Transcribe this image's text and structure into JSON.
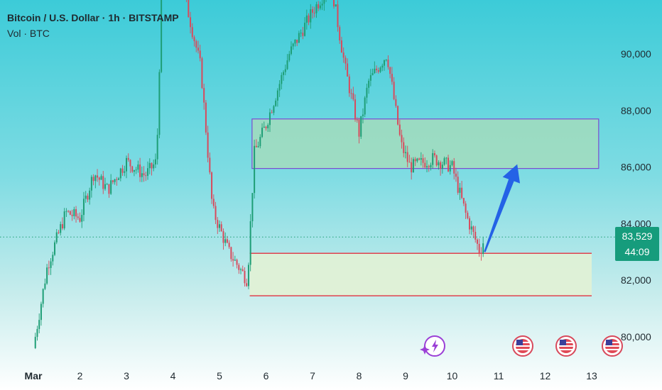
{
  "header": {
    "title": "Bitcoin / U.S. Dollar · 1h · BITSTAMP",
    "subtitle": "Vol · BTC"
  },
  "price_tag": {
    "price": "83,529",
    "countdown": "44:09",
    "color": "#169c7c"
  },
  "colors": {
    "up": "#1e9e76",
    "down": "#d84a5c",
    "resistance_fill": "#a9dcb8",
    "resistance_border": "#7c4bd0",
    "support_fill": "#e4f2d4",
    "support_border": "#e0434f",
    "arrow": "#2462e6"
  },
  "icons": [
    "sparkle-flash-icon",
    "us-flag-icon",
    "us-flag-icon",
    "us-flag-icon"
  ],
  "chart_data": {
    "type": "candlestick",
    "title": "Bitcoin / U.S. Dollar · 1h · BITSTAMP",
    "x_ticks": [
      "Mar",
      "2",
      "3",
      "4",
      "5",
      "6",
      "7",
      "8",
      "9",
      "10",
      "11",
      "12",
      "13"
    ],
    "y_ticks": [
      "80,000",
      "82,000",
      "84,000",
      "86,000",
      "88,000",
      "90,000"
    ],
    "ylim": [
      79200,
      92500
    ],
    "last_price": 83529,
    "price_path": [
      {
        "day": 0.0,
        "price": 79600
      },
      {
        "day": 0.3,
        "price": 82500
      },
      {
        "day": 0.7,
        "price": 84400
      },
      {
        "day": 1.0,
        "price": 84200
      },
      {
        "day": 1.3,
        "price": 85800
      },
      {
        "day": 1.6,
        "price": 85200
      },
      {
        "day": 2.0,
        "price": 86200
      },
      {
        "day": 2.4,
        "price": 85700
      },
      {
        "day": 2.65,
        "price": 86200
      },
      {
        "day": 2.75,
        "price": 92000
      },
      {
        "day": 3.2,
        "price": 92400
      },
      {
        "day": 3.6,
        "price": 89500
      },
      {
        "day": 3.85,
        "price": 84500
      },
      {
        "day": 4.2,
        "price": 83000
      },
      {
        "day": 4.6,
        "price": 82000
      },
      {
        "day": 4.75,
        "price": 86500
      },
      {
        "day": 5.0,
        "price": 87500
      },
      {
        "day": 5.5,
        "price": 90000
      },
      {
        "day": 6.0,
        "price": 91500
      },
      {
        "day": 6.4,
        "price": 92500
      },
      {
        "day": 6.7,
        "price": 89500
      },
      {
        "day": 7.0,
        "price": 87200
      },
      {
        "day": 7.2,
        "price": 89000
      },
      {
        "day": 7.6,
        "price": 90000
      },
      {
        "day": 7.9,
        "price": 86800
      },
      {
        "day": 8.1,
        "price": 86000
      },
      {
        "day": 8.6,
        "price": 86300
      },
      {
        "day": 9.0,
        "price": 86000
      },
      {
        "day": 9.3,
        "price": 84300
      },
      {
        "day": 9.6,
        "price": 83000
      },
      {
        "day": 9.7,
        "price": 83529
      }
    ],
    "zones": [
      {
        "label": "resistance",
        "from_day": 4.7,
        "to_day": 12.15,
        "low": 85950,
        "high": 87700
      },
      {
        "label": "support",
        "from_day": 4.65,
        "to_day": 12.0,
        "low": 81450,
        "high": 82950
      }
    ],
    "arrow": {
      "from": {
        "day": 9.7,
        "price": 83000
      },
      "to": {
        "day": 10.4,
        "price": 86100
      }
    }
  }
}
